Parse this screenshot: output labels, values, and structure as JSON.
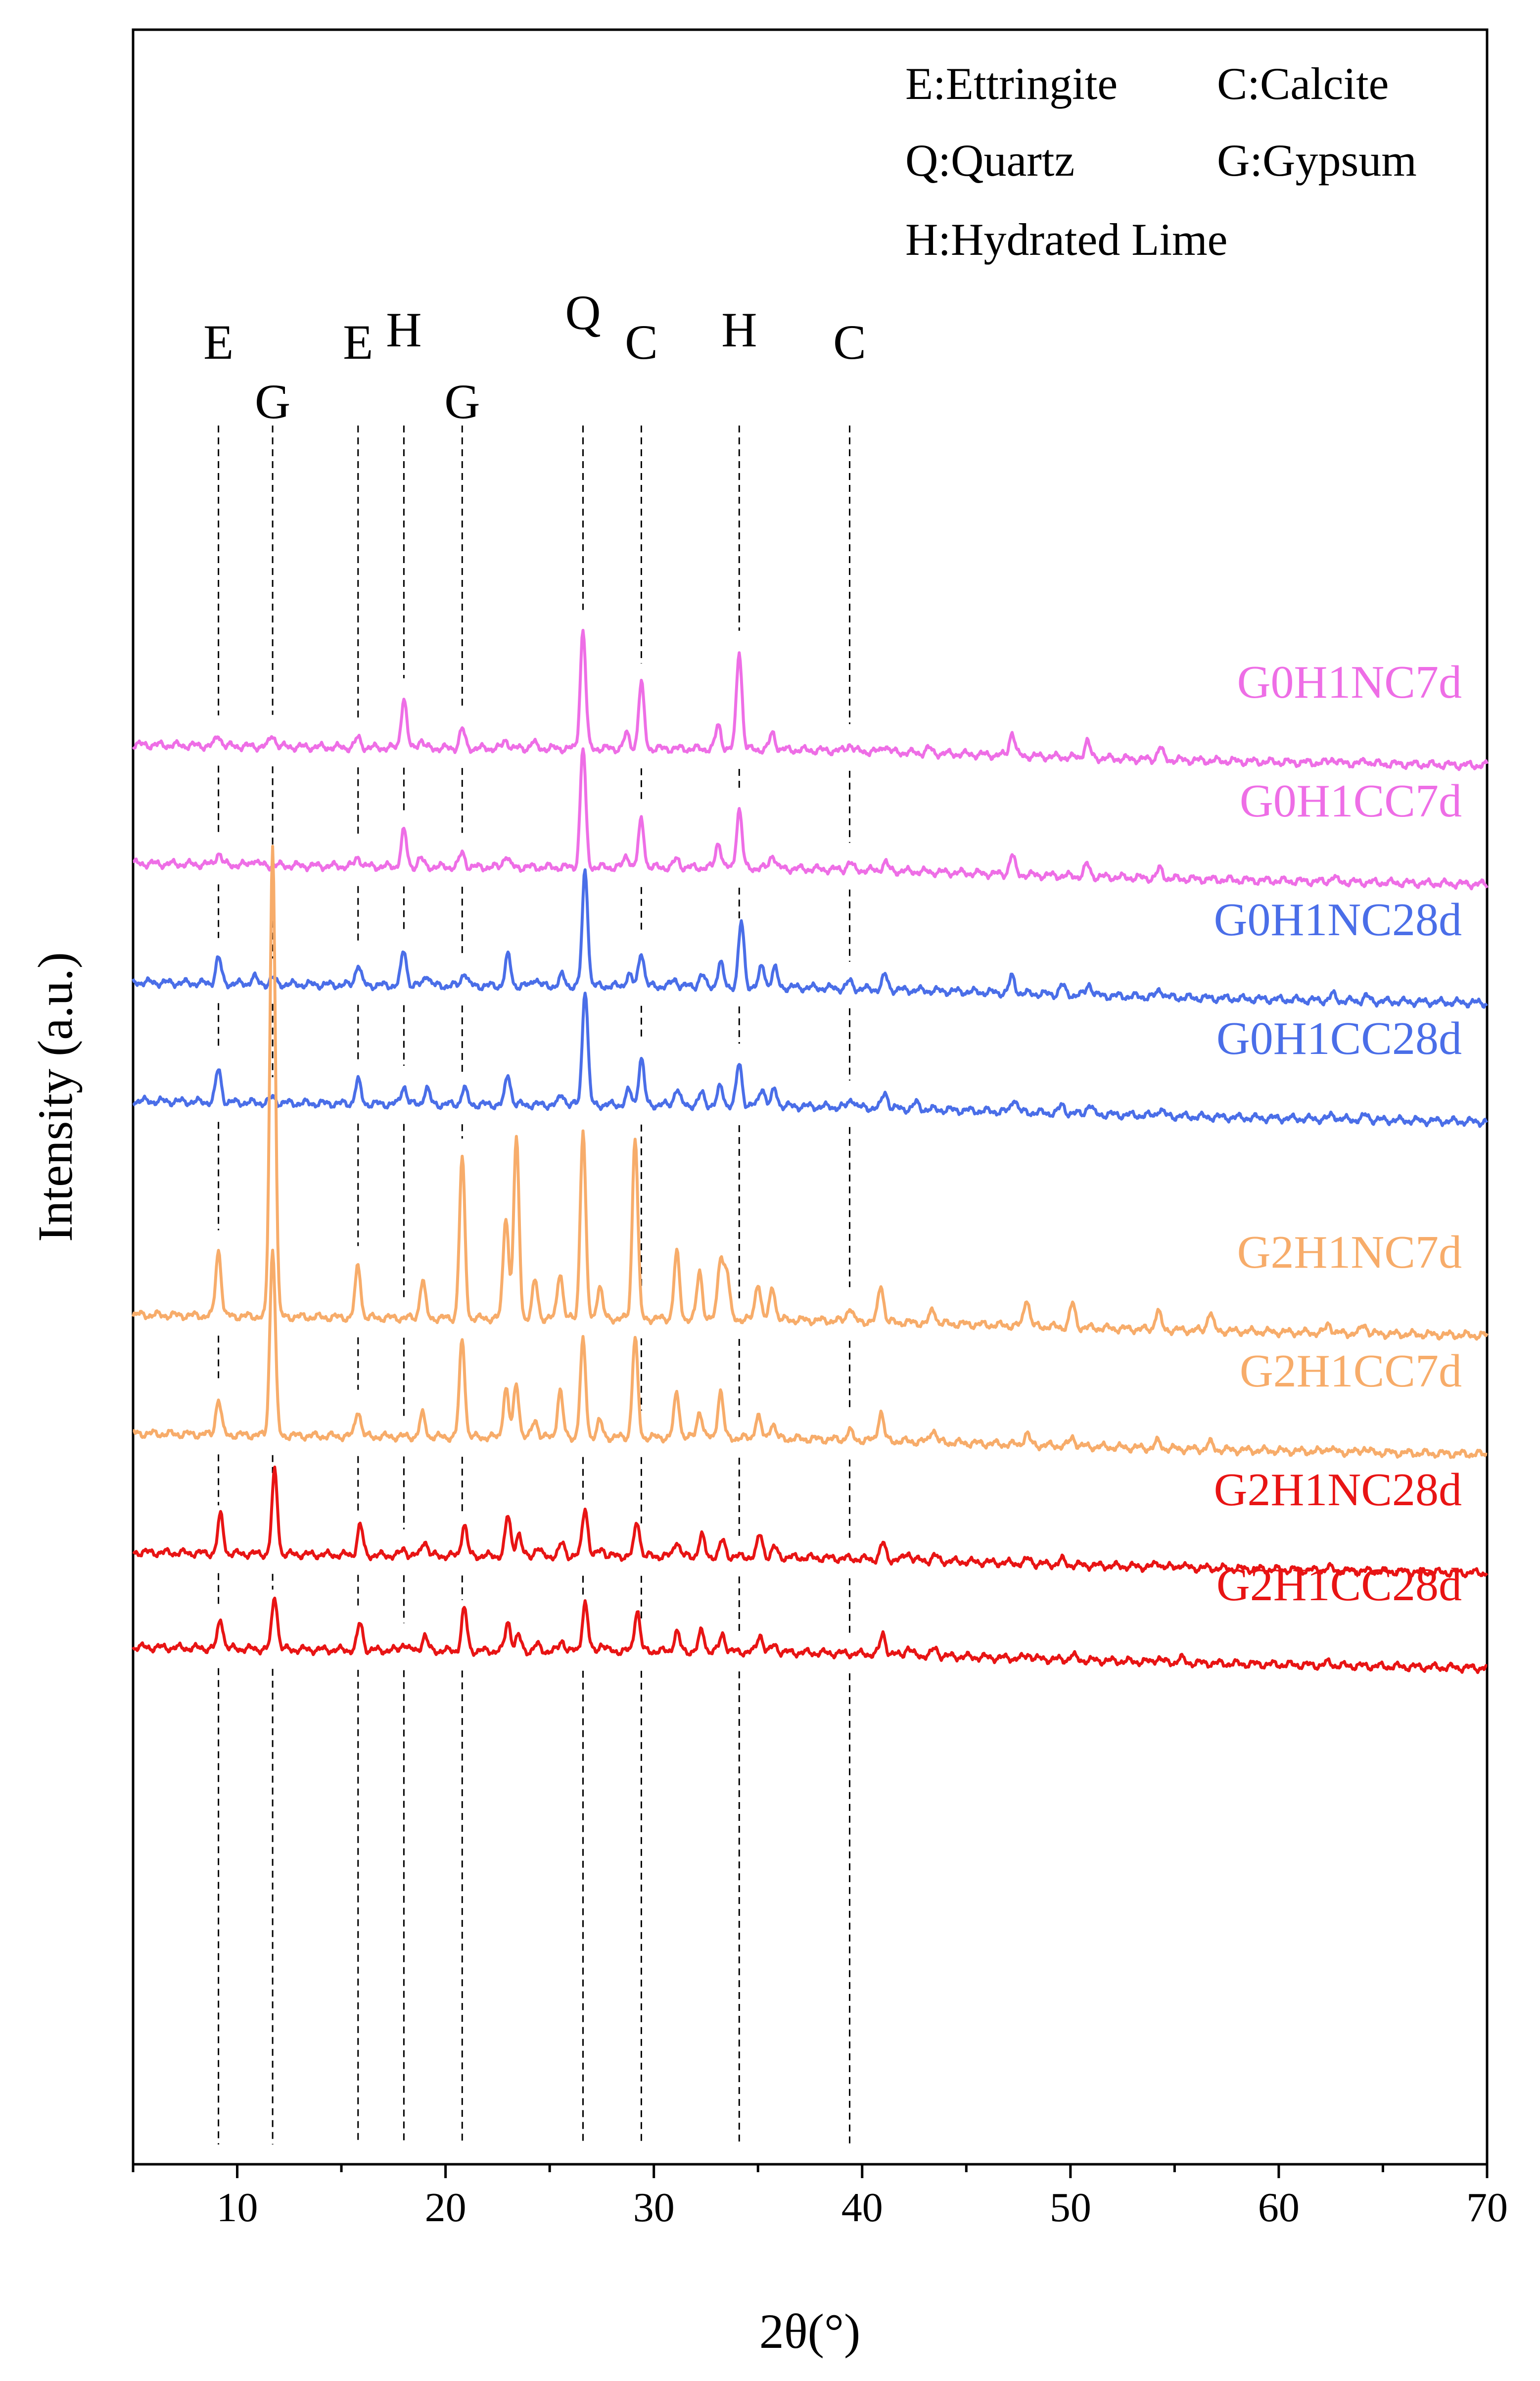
{
  "chart_data": {
    "type": "line",
    "title": "",
    "xlabel": "2θ(°)",
    "ylabel": "Intensity (a.u.)",
    "xlim": [
      5,
      70
    ],
    "xticks": [
      10,
      20,
      30,
      40,
      50,
      60,
      70
    ],
    "yticks": [],
    "grid": false,
    "legend_position": "top-right",
    "legend": [
      {
        "key": "E",
        "text": "E:Ettringite"
      },
      {
        "key": "C",
        "text": "C:Calcite"
      },
      {
        "key": "Q",
        "text": "Q:Quartz"
      },
      {
        "key": "G",
        "text": "G:Gypsum"
      },
      {
        "key": "H",
        "text": "H:Hydrated Lime"
      }
    ],
    "peak_markers": [
      {
        "label": "E",
        "x": 9.1
      },
      {
        "label": "G",
        "x": 11.7
      },
      {
        "label": "E",
        "x": 15.8
      },
      {
        "label": "H",
        "x": 18.0
      },
      {
        "label": "G",
        "x": 20.8
      },
      {
        "label": "Q",
        "x": 26.6
      },
      {
        "label": "C",
        "x": 29.4
      },
      {
        "label": "H",
        "x": 34.1
      },
      {
        "label": "C",
        "x": 39.4
      }
    ],
    "series": [
      {
        "name": "G0H1NC7d",
        "color": "#ee6ee6",
        "baseline": 1.0,
        "peaks": [
          [
            9.1,
            0.09
          ],
          [
            11.7,
            0.1
          ],
          [
            15.8,
            0.08
          ],
          [
            18.0,
            0.42
          ],
          [
            18.8,
            0.07
          ],
          [
            20.8,
            0.16
          ],
          [
            22.9,
            0.07
          ],
          [
            24.2,
            0.05
          ],
          [
            26.6,
            1.0
          ],
          [
            28.7,
            0.12
          ],
          [
            29.4,
            0.55
          ],
          [
            33.1,
            0.2
          ],
          [
            34.1,
            0.83
          ],
          [
            35.7,
            0.14
          ],
          [
            39.4,
            0.06
          ],
          [
            41.1,
            0.06
          ],
          [
            43.2,
            0.04
          ],
          [
            47.2,
            0.2
          ],
          [
            50.8,
            0.14
          ],
          [
            54.3,
            0.1
          ],
          [
            62.6,
            0.04
          ],
          [
            64.2,
            0.03
          ]
        ]
      },
      {
        "name": "G0H1CC7d",
        "color": "#ee6ee6",
        "baseline": 0.5,
        "peaks": [
          [
            9.1,
            0.1
          ],
          [
            10.8,
            0.05
          ],
          [
            15.8,
            0.08
          ],
          [
            18.0,
            0.3
          ],
          [
            18.8,
            0.07
          ],
          [
            20.8,
            0.12
          ],
          [
            22.9,
            0.1
          ],
          [
            26.6,
            1.0
          ],
          [
            28.7,
            0.1
          ],
          [
            29.4,
            0.4
          ],
          [
            31.1,
            0.07
          ],
          [
            33.1,
            0.22
          ],
          [
            34.1,
            0.5
          ],
          [
            35.7,
            0.12
          ],
          [
            39.4,
            0.06
          ],
          [
            41.1,
            0.07
          ],
          [
            47.2,
            0.16
          ],
          [
            50.8,
            0.1
          ],
          [
            54.3,
            0.08
          ],
          [
            62.6,
            0.04
          ]
        ]
      },
      {
        "name": "G0H1NC28d",
        "color": "#4a6ee8",
        "baseline": 0.0,
        "peaks": [
          [
            9.1,
            0.22
          ],
          [
            10.8,
            0.06
          ],
          [
            11.7,
            0.05
          ],
          [
            15.8,
            0.18
          ],
          [
            18.0,
            0.3
          ],
          [
            19.1,
            0.1
          ],
          [
            20.9,
            0.12
          ],
          [
            23.0,
            0.26
          ],
          [
            24.3,
            0.07
          ],
          [
            25.6,
            0.09
          ],
          [
            26.7,
            1.0
          ],
          [
            28.8,
            0.1
          ],
          [
            29.4,
            0.3
          ],
          [
            31.0,
            0.06
          ],
          [
            32.3,
            0.1
          ],
          [
            33.2,
            0.2
          ],
          [
            34.2,
            0.55
          ],
          [
            35.2,
            0.18
          ],
          [
            35.8,
            0.16
          ],
          [
            39.4,
            0.06
          ],
          [
            41.1,
            0.12
          ],
          [
            47.2,
            0.14
          ],
          [
            49.6,
            0.08
          ],
          [
            50.9,
            0.1
          ],
          [
            54.3,
            0.07
          ],
          [
            62.6,
            0.05
          ],
          [
            64.2,
            0.04
          ]
        ]
      },
      {
        "name": "G0H1CC28d",
        "color": "#4a6ee8",
        "baseline": -0.5,
        "peaks": [
          [
            9.1,
            0.28
          ],
          [
            11.7,
            0.05
          ],
          [
            15.8,
            0.2
          ],
          [
            18.0,
            0.16
          ],
          [
            19.1,
            0.14
          ],
          [
            20.9,
            0.14
          ],
          [
            23.0,
            0.26
          ],
          [
            25.6,
            0.09
          ],
          [
            26.7,
            1.0
          ],
          [
            28.8,
            0.12
          ],
          [
            29.4,
            0.4
          ],
          [
            31.1,
            0.14
          ],
          [
            32.3,
            0.1
          ],
          [
            33.2,
            0.16
          ],
          [
            34.1,
            0.36
          ],
          [
            35.2,
            0.16
          ],
          [
            35.8,
            0.14
          ],
          [
            39.5,
            0.08
          ],
          [
            41.1,
            0.14
          ],
          [
            42.6,
            0.05
          ],
          [
            47.3,
            0.12
          ],
          [
            49.6,
            0.07
          ],
          [
            50.9,
            0.08
          ],
          [
            54.3,
            0.06
          ],
          [
            62.6,
            0.04
          ],
          [
            64.2,
            0.04
          ]
        ]
      },
      {
        "name": "G2H1NC7d",
        "color": "#f7ac6a",
        "baseline": -1.4,
        "peaks": [
          [
            9.1,
            0.14
          ],
          [
            11.7,
            1.0
          ],
          [
            15.8,
            0.11
          ],
          [
            18.9,
            0.08
          ],
          [
            20.8,
            0.34
          ],
          [
            22.9,
            0.22
          ],
          [
            23.4,
            0.38
          ],
          [
            24.3,
            0.08
          ],
          [
            25.5,
            0.1
          ],
          [
            26.6,
            0.4
          ],
          [
            27.4,
            0.07
          ],
          [
            29.1,
            0.39
          ],
          [
            31.1,
            0.14
          ],
          [
            32.2,
            0.1
          ],
          [
            33.2,
            0.13
          ],
          [
            33.5,
            0.1
          ],
          [
            35.0,
            0.08
          ],
          [
            35.7,
            0.07
          ],
          [
            39.4,
            0.03
          ],
          [
            40.9,
            0.08
          ],
          [
            43.4,
            0.03
          ],
          [
            47.9,
            0.06
          ],
          [
            50.1,
            0.05
          ],
          [
            54.2,
            0.04
          ],
          [
            56.7,
            0.04
          ],
          [
            62.4,
            0.02
          ],
          [
            64.1,
            0.02
          ]
        ]
      },
      {
        "name": "G2H1CC7d",
        "color": "#f7ac6a",
        "baseline": -1.9,
        "peaks": [
          [
            9.1,
            0.16
          ],
          [
            11.7,
            0.84
          ],
          [
            15.8,
            0.12
          ],
          [
            18.9,
            0.1
          ],
          [
            20.8,
            0.44
          ],
          [
            22.9,
            0.22
          ],
          [
            23.4,
            0.24
          ],
          [
            24.3,
            0.08
          ],
          [
            25.5,
            0.21
          ],
          [
            26.6,
            0.43
          ],
          [
            27.4,
            0.07
          ],
          [
            29.1,
            0.44
          ],
          [
            31.1,
            0.2
          ],
          [
            32.2,
            0.12
          ],
          [
            33.2,
            0.21
          ],
          [
            35.0,
            0.1
          ],
          [
            35.7,
            0.07
          ],
          [
            39.4,
            0.04
          ],
          [
            40.9,
            0.13
          ],
          [
            43.4,
            0.06
          ],
          [
            47.9,
            0.05
          ],
          [
            50.1,
            0.04
          ],
          [
            54.2,
            0.03
          ],
          [
            56.7,
            0.03
          ],
          [
            62.4,
            0.02
          ],
          [
            64.1,
            0.02
          ]
        ]
      },
      {
        "name": "G2H1NC28d",
        "color": "#e81414",
        "baseline": -2.4,
        "peaks": [
          [
            9.2,
            0.24
          ],
          [
            11.8,
            0.52
          ],
          [
            15.9,
            0.19
          ],
          [
            18.0,
            0.04
          ],
          [
            19.0,
            0.1
          ],
          [
            20.9,
            0.2
          ],
          [
            23.0,
            0.25
          ],
          [
            23.5,
            0.14
          ],
          [
            24.4,
            0.05
          ],
          [
            25.6,
            0.08
          ],
          [
            26.7,
            0.31
          ],
          [
            27.5,
            0.05
          ],
          [
            29.2,
            0.22
          ],
          [
            31.1,
            0.1
          ],
          [
            32.3,
            0.13
          ],
          [
            33.3,
            0.1
          ],
          [
            35.1,
            0.14
          ],
          [
            35.8,
            0.06
          ],
          [
            41.0,
            0.1
          ],
          [
            42.2,
            0.05
          ],
          [
            43.5,
            0.03
          ],
          [
            48.0,
            0.03
          ],
          [
            49.6,
            0.03
          ],
          [
            54.2,
            0.03
          ],
          [
            55.3,
            0.02
          ],
          [
            62.4,
            0.02
          ]
        ]
      },
      {
        "name": "G2H1CC28d",
        "color": "#e81414",
        "baseline": -2.8,
        "peaks": [
          [
            9.2,
            0.2
          ],
          [
            11.8,
            0.36
          ],
          [
            15.9,
            0.18
          ],
          [
            18.0,
            0.05
          ],
          [
            19.0,
            0.1
          ],
          [
            20.9,
            0.28
          ],
          [
            23.0,
            0.2
          ],
          [
            23.5,
            0.1
          ],
          [
            24.4,
            0.04
          ],
          [
            25.6,
            0.07
          ],
          [
            26.7,
            0.33
          ],
          [
            27.5,
            0.05
          ],
          [
            29.2,
            0.28
          ],
          [
            31.1,
            0.13
          ],
          [
            32.3,
            0.14
          ],
          [
            33.3,
            0.12
          ],
          [
            35.1,
            0.12
          ],
          [
            35.8,
            0.05
          ],
          [
            41.0,
            0.14
          ],
          [
            42.2,
            0.05
          ],
          [
            43.5,
            0.05
          ],
          [
            48.0,
            0.03
          ],
          [
            50.1,
            0.03
          ],
          [
            54.2,
            0.03
          ],
          [
            55.3,
            0.03
          ],
          [
            62.4,
            0.02
          ]
        ]
      }
    ]
  }
}
